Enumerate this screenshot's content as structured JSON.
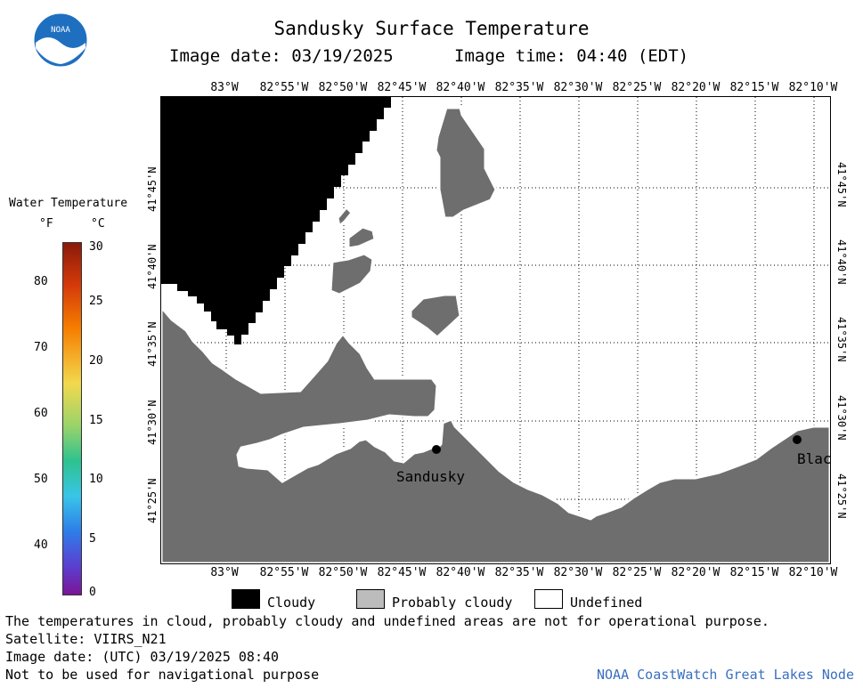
{
  "header": {
    "title": "Sandusky Surface Temperature",
    "date_label": "Image date: 03/19/2025",
    "time_label": "Image time: 04:40 (EDT)"
  },
  "logo": {
    "text": "NOAA"
  },
  "colorbar": {
    "title": "Water Temperature",
    "unit_f": "°F",
    "unit_c": "°C",
    "f_ticks": [
      "80",
      "70",
      "60",
      "50",
      "40"
    ],
    "c_ticks": [
      "30",
      "25",
      "20",
      "15",
      "10",
      "5",
      "0"
    ]
  },
  "map": {
    "lon_labels": [
      "83°W",
      "82°55'W",
      "82°50'W",
      "82°45'W",
      "82°40'W",
      "82°35'W",
      "82°30'W",
      "82°25'W",
      "82°20'W",
      "82°15'W",
      "82°10'W"
    ],
    "lat_labels": [
      "41°45'N",
      "41°40'N",
      "41°35'N",
      "41°30'N",
      "41°25'N"
    ],
    "places": {
      "sandusky": "Sandusky",
      "blac": "Blac"
    }
  },
  "legend": {
    "cloudy": "Cloudy",
    "probably_cloudy": "Probably cloudy",
    "undefined": "Undefined",
    "colors": {
      "cloudy": "#000000",
      "probably_cloudy": "#bcbcbc",
      "undefined": "#ffffff",
      "land": "#6e6e6e"
    }
  },
  "footer": {
    "note": "The temperatures in cloud, probably cloudy and undefined areas are not for operational purpose.",
    "satellite": "Satellite: VIIRS_N21",
    "utc_date": "Image date: (UTC) 03/19/2025  08:40",
    "nav_warning": "Not to be used for navigational purpose",
    "credit": "NOAA CoastWatch Great Lakes Node"
  }
}
